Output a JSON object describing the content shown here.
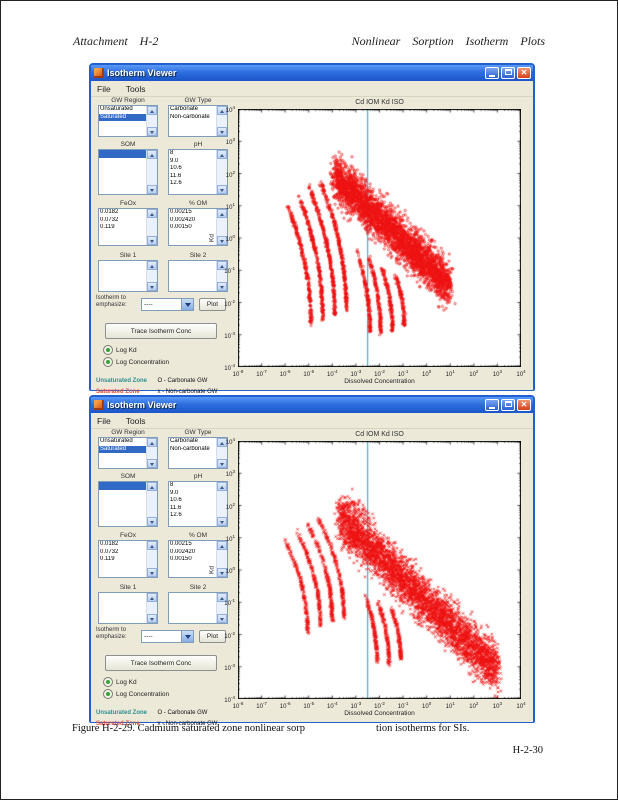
{
  "page": {
    "header_left": "Attachment H-2",
    "header_right": "Nonlinear Sorption Isotherm Plots",
    "caption_part1": "Figure H-2-29. Cadmium saturated zone nonlinear sorp",
    "caption_part2": "tion isotherms for SIs.",
    "page_number": "H-2-30"
  },
  "window": {
    "title": "Isotherm Viewer",
    "menu": [
      "File",
      "Tools"
    ],
    "panel": {
      "listboxes": [
        {
          "label": "GW Region",
          "items": [
            "Unsaturated",
            "Saturated"
          ],
          "selected_index": 1
        },
        {
          "label": "GW Type",
          "items": [
            "Carbonate",
            "Non-carbonate"
          ],
          "selected_index": -1
        },
        {
          "label": "SOM",
          "items": [
            ""
          ],
          "selected_index": 0
        },
        {
          "label": "pH",
          "items": [
            "8",
            "9.0",
            "10.6",
            "11.6",
            "12.6"
          ],
          "selected_index": -1
        },
        {
          "label": "FeOx",
          "items": [
            "0.0182",
            "0.0732",
            "0.119"
          ],
          "selected_index": -1
        },
        {
          "label": "% OM",
          "items": [
            "0.00215",
            "0.002420",
            "0.00150"
          ],
          "selected_index": -1
        },
        {
          "label": "Site 1",
          "items": [],
          "selected_index": -1
        },
        {
          "label": "Site 2",
          "items": [],
          "selected_index": -1
        }
      ],
      "emphasize_label": "Isotherm to emphasize:",
      "emphasize_value": "----",
      "plot_button": "Plot",
      "trace_button": "Trace Isotherm Conc",
      "radio_log_kd": "Log Kd",
      "radio_log_conc": "Log Concentration",
      "legend": [
        {
          "zone": "Unsaturated Zone",
          "desc": "O - Carbonate GW",
          "color": "#2E8F8F"
        },
        {
          "zone": "Saturated Zone",
          "desc": "x - Non-carbonate GW",
          "color": "#E2492F"
        }
      ]
    }
  },
  "chart_data": [
    {
      "type": "scatter",
      "title": "Cd IOM Kd ISO",
      "xlabel": "Dissolved Concentration",
      "ylabel": "Kd",
      "x_log_range": [
        -8,
        4
      ],
      "y_log_range": [
        -4,
        4
      ],
      "grid": false,
      "marker": "o",
      "marker_color": "#EE1111",
      "vline_log_x": -2.5,
      "vline_color": "#2E9BBE",
      "seed": 11,
      "bands": [
        {
          "kind": "tail",
          "x_start": -5.9,
          "x_bend": 1.0,
          "y_top": 1.0,
          "y_bottom": -2.7,
          "n": 240
        },
        {
          "kind": "tail",
          "x_start": -5.45,
          "x_bend": 1.05,
          "y_top": 1.35,
          "y_bottom": -2.55,
          "n": 260
        },
        {
          "kind": "tail",
          "x_start": -5.0,
          "x_bend": 1.1,
          "y_top": 1.6,
          "y_bottom": -2.4,
          "n": 280
        },
        {
          "kind": "tail",
          "x_start": -4.55,
          "x_bend": 1.15,
          "y_top": 1.8,
          "y_bottom": -2.25,
          "n": 280
        },
        {
          "kind": "cloud",
          "x_from": -3.9,
          "y_from": 1.9,
          "x_to": 1.0,
          "y_to": -1.5,
          "spread": 0.65,
          "n": 3200
        },
        {
          "kind": "tail",
          "x_start": -3.0,
          "x_bend": 0.6,
          "y_top": -0.3,
          "y_bottom": -2.9,
          "n": 160
        },
        {
          "kind": "tail",
          "x_start": -2.45,
          "x_bend": 0.5,
          "y_top": -0.6,
          "y_bottom": -2.95,
          "n": 150
        },
        {
          "kind": "tail",
          "x_start": -1.9,
          "x_bend": 0.45,
          "y_top": -0.9,
          "y_bottom": -2.9,
          "n": 140
        },
        {
          "kind": "tail",
          "x_start": -1.35,
          "x_bend": 0.4,
          "y_top": -1.1,
          "y_bottom": -2.7,
          "n": 120
        }
      ]
    },
    {
      "type": "scatter",
      "title": "Cd IOM Kd ISO",
      "xlabel": "Dissolved Concentration",
      "ylabel": "Kd",
      "x_log_range": [
        -8,
        4
      ],
      "y_log_range": [
        -4,
        4
      ],
      "grid": false,
      "marker": "x",
      "marker_color": "#EE1111",
      "vline_log_x": -2.5,
      "vline_color": "#2E9BBE",
      "seed": 29,
      "bands": [
        {
          "kind": "tail",
          "x_start": -6.0,
          "x_bend": 0.95,
          "y_top": 0.9,
          "y_bottom": -1.9,
          "n": 170
        },
        {
          "kind": "tail",
          "x_start": -5.5,
          "x_bend": 1.0,
          "y_top": 1.2,
          "y_bottom": -1.75,
          "n": 180
        },
        {
          "kind": "tail",
          "x_start": -5.05,
          "x_bend": 1.05,
          "y_top": 1.45,
          "y_bottom": -1.6,
          "n": 190
        },
        {
          "kind": "tail",
          "x_start": -4.6,
          "x_bend": 1.1,
          "y_top": 1.6,
          "y_bottom": -1.5,
          "n": 190
        },
        {
          "kind": "cloud",
          "x_from": -3.7,
          "y_from": 1.6,
          "x_to": 3.0,
          "y_to": -3.1,
          "spread": 0.7,
          "n": 3800
        },
        {
          "kind": "cloud",
          "x_from": -3.4,
          "y_from": 2.2,
          "x_to": -2.2,
          "y_to": 1.4,
          "spread": 0.3,
          "n": 60
        },
        {
          "kind": "tail",
          "x_start": -2.6,
          "x_bend": 0.5,
          "y_top": -0.8,
          "y_bottom": -2.9,
          "n": 150
        },
        {
          "kind": "tail",
          "x_start": -2.05,
          "x_bend": 0.45,
          "y_top": -1.0,
          "y_bottom": -2.9,
          "n": 140
        },
        {
          "kind": "tail",
          "x_start": -1.5,
          "x_bend": 0.4,
          "y_top": -1.2,
          "y_bottom": -2.8,
          "n": 130
        }
      ]
    }
  ]
}
